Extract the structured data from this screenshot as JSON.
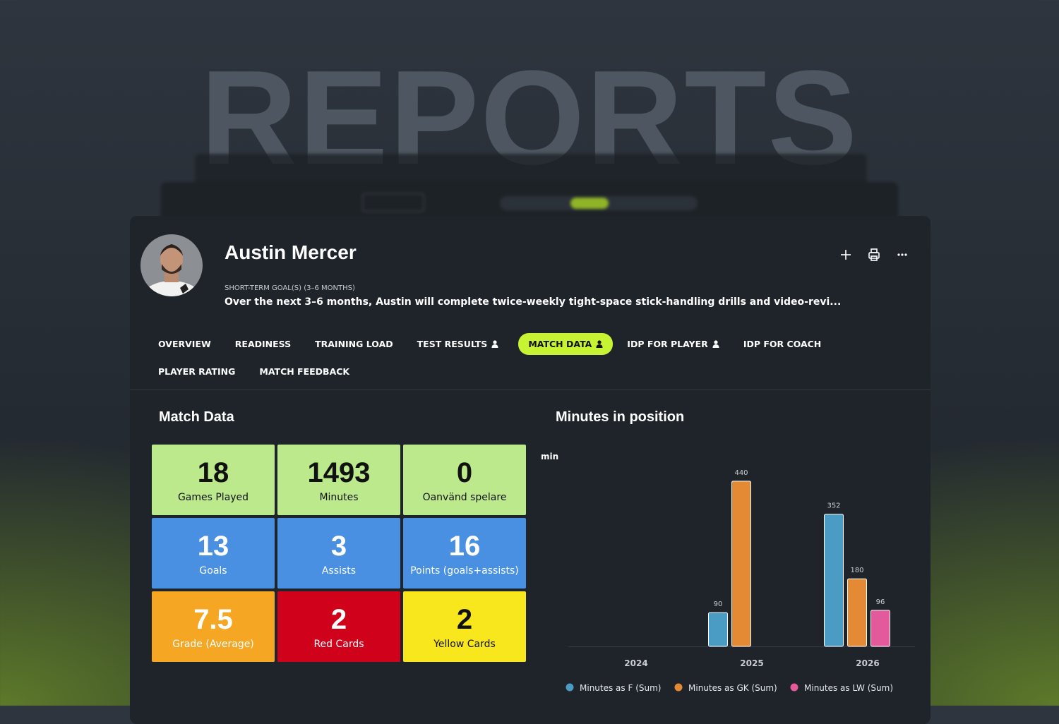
{
  "background_title": "REPORTS",
  "player": {
    "name": "Austin Mercer",
    "goal_label": "SHORT-TERM GOAL(S) (3–6 MONTHS)",
    "goal_text": "Over the next 3–6 months, Austin will complete twice-weekly tight-space stick-handling drills and video-revi..."
  },
  "tabs": [
    {
      "label": "OVERVIEW",
      "active": false,
      "person_icon": false
    },
    {
      "label": "READINESS",
      "active": false,
      "person_icon": false
    },
    {
      "label": "TRAINING LOAD",
      "active": false,
      "person_icon": false
    },
    {
      "label": "TEST RESULTS",
      "active": false,
      "person_icon": true
    },
    {
      "label": "MATCH DATA",
      "active": true,
      "person_icon": true
    },
    {
      "label": "IDP FOR PLAYER",
      "active": false,
      "person_icon": true
    },
    {
      "label": "IDP FOR COACH",
      "active": false,
      "person_icon": false
    },
    {
      "label": "PLAYER RATING",
      "active": false,
      "person_icon": false
    },
    {
      "label": "MATCH FEEDBACK",
      "active": false,
      "person_icon": false
    }
  ],
  "match_data": {
    "title": "Match Data",
    "tiles": [
      {
        "value": 18,
        "label": "Games Played",
        "color": "#bbe98b",
        "text_color": "#111111"
      },
      {
        "value": 1493,
        "label": "Minutes",
        "color": "#bbe98b",
        "text_color": "#111111"
      },
      {
        "value": 0,
        "label": "Oanvänd spelare",
        "color": "#bbe98b",
        "text_color": "#111111"
      },
      {
        "value": 13,
        "label": "Goals",
        "color": "#4a90e2",
        "text_color": "#ffffff"
      },
      {
        "value": 3,
        "label": "Assists",
        "color": "#4a90e2",
        "text_color": "#ffffff"
      },
      {
        "value": 16,
        "label": "Points (goals+assists)",
        "color": "#4a90e2",
        "text_color": "#ffffff"
      },
      {
        "value": 7.5,
        "label": "Grade (Average)",
        "color": "#f5a623",
        "text_color": "#ffffff"
      },
      {
        "value": 2,
        "label": "Red Cards",
        "color": "#d0021b",
        "text_color": "#ffffff"
      },
      {
        "value": 2,
        "label": "Yellow Cards",
        "color": "#f8e71c",
        "text_color": "#111111"
      }
    ]
  },
  "chart": {
    "type": "bar",
    "title": "Minutes in position",
    "y_label": "min",
    "categories": [
      "2024",
      "2025",
      "2026"
    ],
    "series": [
      {
        "name": "Minutes as F (Sum)",
        "color": "#4a9cc4",
        "values": [
          null,
          90,
          352
        ]
      },
      {
        "name": "Minutes as GK (Sum)",
        "color": "#e48a35",
        "values": [
          null,
          440,
          180
        ]
      },
      {
        "name": "Minutes as LW (Sum)",
        "color": "#e25a9c",
        "values": [
          null,
          null,
          96
        ]
      }
    ],
    "ylim": [
      0,
      500
    ]
  }
}
